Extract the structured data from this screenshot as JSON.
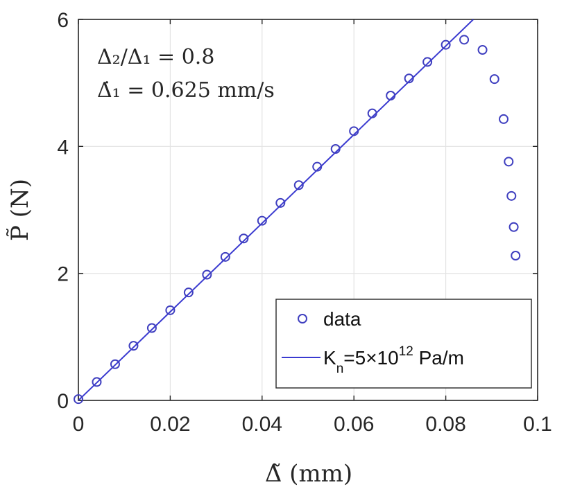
{
  "chart_data": {
    "type": "scatter",
    "title": "",
    "xlabel": "Δ̃ (mm)",
    "ylabel": "P̃ (N)",
    "xlim": [
      0,
      0.1
    ],
    "ylim": [
      0,
      6
    ],
    "grid": true,
    "x_ticks": [
      0,
      0.02,
      0.04,
      0.06,
      0.08,
      0.1
    ],
    "x_tick_labels": [
      "0",
      "0.02",
      "0.04",
      "0.06",
      "0.08",
      "0.1"
    ],
    "y_ticks": [
      0,
      2,
      4,
      6
    ],
    "y_tick_labels": [
      "0",
      "2",
      "4",
      "6"
    ],
    "annotations": [
      "Δ₂/Δ₁ = 0.8",
      "Δ̇₁ = 0.625 mm/s"
    ],
    "legend_position": "bottom-right",
    "series": [
      {
        "name": "data",
        "kind": "markers",
        "marker": "circle",
        "color": "#4040c0",
        "x": [
          0,
          0.004,
          0.008,
          0.012,
          0.016,
          0.02,
          0.024,
          0.028,
          0.032,
          0.036,
          0.04,
          0.044,
          0.048,
          0.052,
          0.056,
          0.06,
          0.064,
          0.068,
          0.072,
          0.076,
          0.08,
          0.084,
          0.088,
          0.0906,
          0.0926,
          0.0937,
          0.0943,
          0.0948,
          0.0952
        ],
        "y": [
          0.02,
          0.29,
          0.57,
          0.86,
          1.14,
          1.42,
          1.7,
          1.98,
          2.26,
          2.55,
          2.83,
          3.11,
          3.39,
          3.68,
          3.96,
          4.24,
          4.52,
          4.8,
          5.07,
          5.33,
          5.6,
          5.68,
          5.52,
          5.06,
          4.43,
          3.76,
          3.22,
          2.73,
          2.28
        ]
      },
      {
        "name": "K_n=5×10^12 Pa/m",
        "legend_base": "K",
        "legend_sub": "n",
        "legend_mid": "=5×10",
        "legend_sup": "12",
        "legend_tail": " Pa/m",
        "kind": "line",
        "color": "#3a3ad0",
        "x": [
          0,
          0.086
        ],
        "y": [
          0,
          6.0
        ]
      }
    ]
  }
}
